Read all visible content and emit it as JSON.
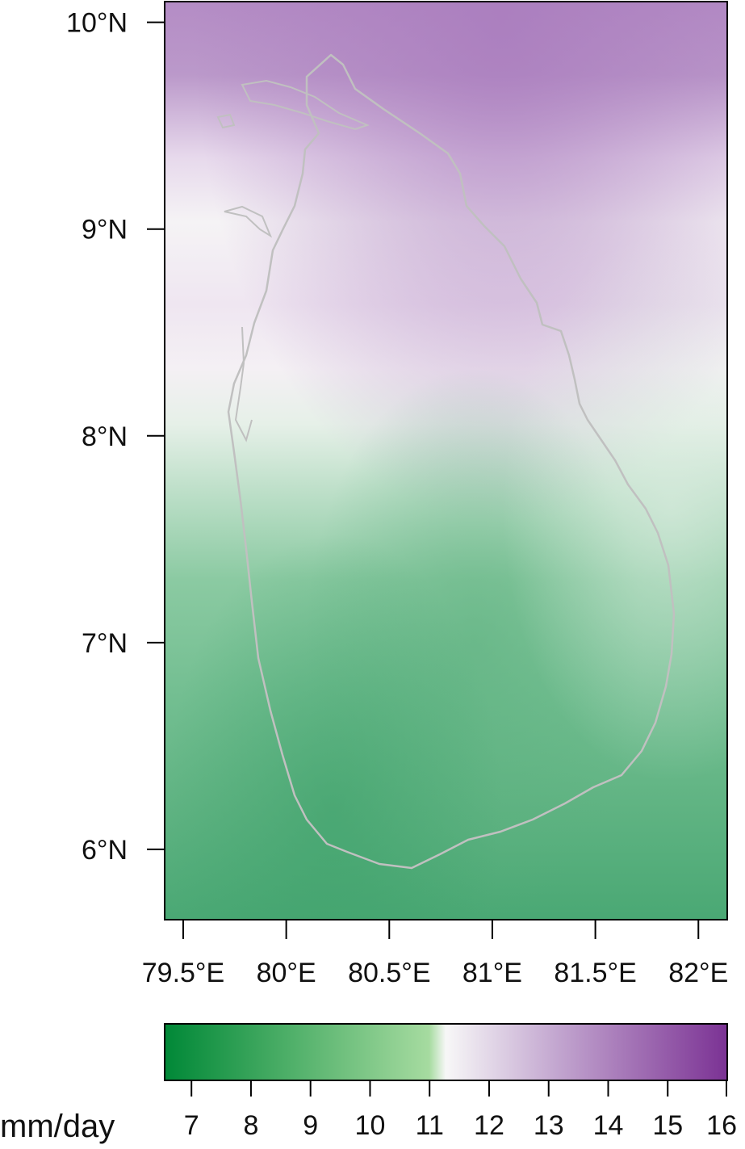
{
  "map": {
    "y_ticks": [
      {
        "value": 10,
        "label": "10°N"
      },
      {
        "value": 9,
        "label": "9°N"
      },
      {
        "value": 8,
        "label": "8°N"
      },
      {
        "value": 7,
        "label": "7°N"
      },
      {
        "value": 6,
        "label": "6°N"
      }
    ],
    "x_ticks": [
      {
        "value": 79.5,
        "label": "79.5°E"
      },
      {
        "value": 80.0,
        "label": "80°E"
      },
      {
        "value": 80.5,
        "label": "80.5°E"
      },
      {
        "value": 81.0,
        "label": "81°E"
      },
      {
        "value": 81.5,
        "label": "81.5°E"
      },
      {
        "value": 82.0,
        "label": "82°E"
      }
    ],
    "lon_range": [
      79.41,
      82.14
    ],
    "lat_range": [
      5.66,
      10.1
    ],
    "coastline_color": "#c0c0c0",
    "frame_color": "#000000"
  },
  "colorbar": {
    "unit": "mm/day",
    "ticks": [
      7,
      8,
      9,
      10,
      11,
      12,
      13,
      14,
      15,
      16
    ],
    "range": [
      6.55,
      16.0
    ],
    "low_color": "#008837",
    "mid_color": "#f7f7f7",
    "high_color": "#7b3294"
  }
}
